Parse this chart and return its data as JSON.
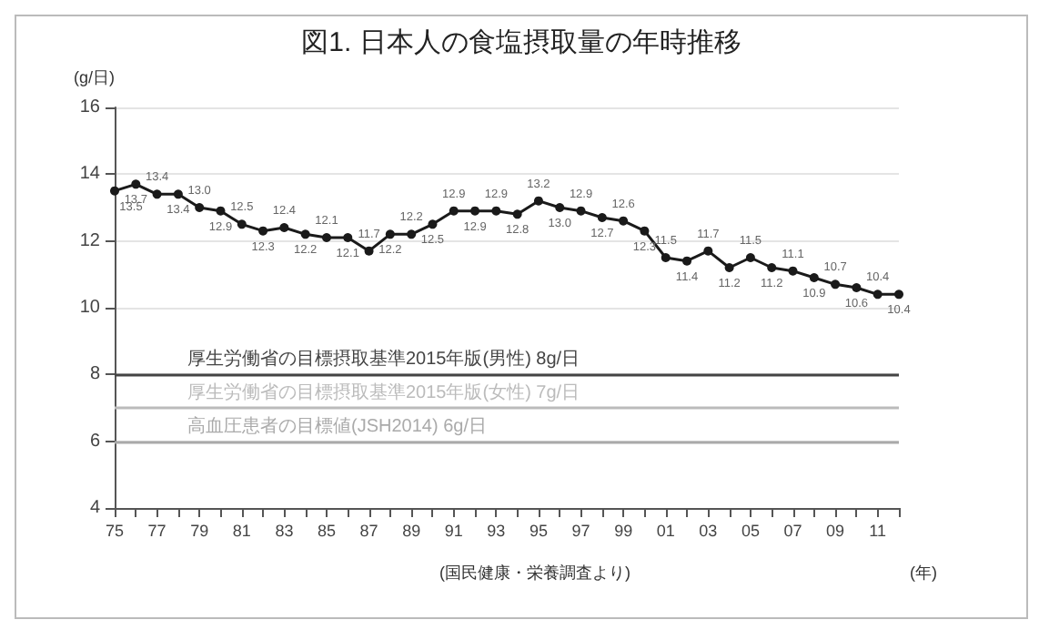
{
  "chart_data": {
    "type": "line",
    "title": "図1. 日本人の食塩摂取量の年時推移",
    "ylabel": "(g/日)",
    "annotations": [
      "(国民健康・栄養調査より)",
      "(年)"
    ],
    "categories": [
      "75",
      null,
      "77",
      null,
      "79",
      null,
      "81",
      null,
      "83",
      null,
      "85",
      null,
      "87",
      null,
      "89",
      null,
      "91",
      null,
      "93",
      null,
      "95",
      null,
      "97",
      null,
      "99",
      null,
      "01",
      null,
      "03",
      null,
      "05",
      null,
      "07",
      null,
      "09",
      null,
      "11",
      null
    ],
    "series": [
      {
        "color": "#1a1a1a",
        "values": [
          13.5,
          13.7,
          13.4,
          13.4,
          13.0,
          12.9,
          12.5,
          12.3,
          12.4,
          12.2,
          12.1,
          12.1,
          11.7,
          12.2,
          12.2,
          12.5,
          12.9,
          12.9,
          12.9,
          12.8,
          13.2,
          13.0,
          12.9,
          12.7,
          12.6,
          12.3,
          11.5,
          11.4,
          11.7,
          11.2,
          11.5,
          11.2,
          11.1,
          10.9,
          10.7,
          10.6,
          10.4,
          10.4
        ],
        "value_labels": [
          "13.5",
          "13.7",
          "13.4",
          "13.4",
          "13.0",
          "12.9",
          "12.5",
          "12.3",
          "12.4",
          "12.2",
          "12.1",
          "12.1",
          "11.7",
          "12.2",
          "12.2",
          "12.5",
          "12.9",
          "12.9",
          "12.9",
          "12.8",
          "13.2",
          "13.0",
          "12.9",
          "12.7",
          "12.6",
          "12.3",
          "11.5",
          "11.4",
          "11.7",
          "11.2",
          "11.5",
          "11.2",
          "11.1",
          "10.9",
          "10.7",
          "10.6",
          "10.4",
          "10.4"
        ]
      }
    ],
    "ylim": [
      4,
      16
    ],
    "yticks": [
      4,
      6,
      8,
      10,
      12,
      14,
      16
    ],
    "grid": "y",
    "marker": "circle",
    "line_style": "solid",
    "ref_lines": [
      {
        "axis": "y",
        "value": 8,
        "label": "厚生労働省の目標摂取基準2015年版(男性) 8g/日",
        "color": "#444444"
      },
      {
        "axis": "y",
        "value": 7,
        "label": "厚生労働省の目標摂取基準2015年版(女性) 7g/日",
        "color": "#bbbbbb"
      },
      {
        "axis": "y",
        "value": 6,
        "label": "高血圧患者の目標値(JSH2014) 6g/日",
        "color": "#aaaaaa"
      }
    ]
  }
}
